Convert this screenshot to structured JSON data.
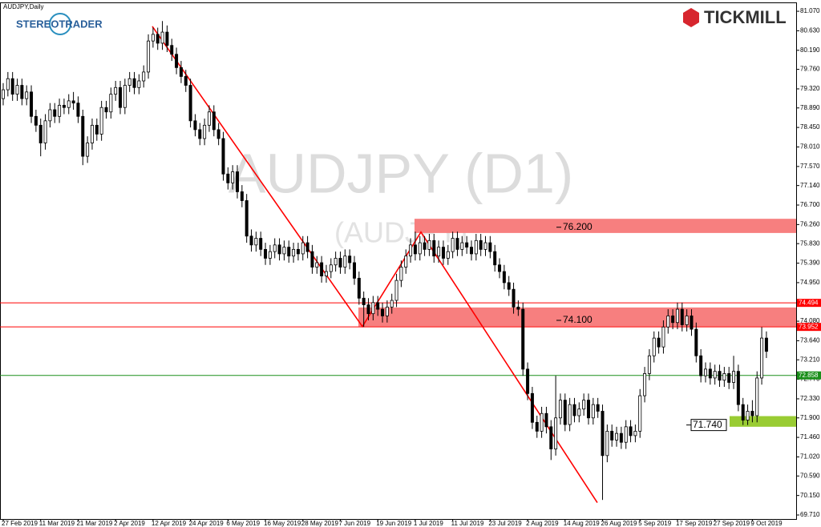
{
  "chart_data": {
    "type": "candlestick",
    "title": "AUDJPY,Daily",
    "watermark": "AUDJPY (D1)",
    "watermark_sub": "(AUDJPY)",
    "brand_left": "STEREOTRADER",
    "brand_right": "TICKMILL",
    "up_color": "#ffffff",
    "down_color": "#000000",
    "categories": [
      "27 Feb 2019",
      null,
      null,
      null,
      null,
      null,
      null,
      null,
      "11 Mar 2019",
      null,
      null,
      null,
      null,
      null,
      null,
      null,
      "21 Mar 2019",
      null,
      null,
      null,
      null,
      null,
      null,
      null,
      "2 Apr 2019",
      null,
      null,
      null,
      null,
      null,
      null,
      null,
      "12 Apr 2019",
      null,
      null,
      null,
      null,
      null,
      null,
      null,
      "24 Apr 2019",
      null,
      null,
      null,
      null,
      null,
      null,
      null,
      "6 May 2019",
      null,
      null,
      null,
      null,
      null,
      null,
      null,
      "16 May 2019",
      null,
      null,
      null,
      null,
      null,
      null,
      null,
      "28 May 2019",
      null,
      null,
      null,
      null,
      null,
      null,
      null,
      "7 Jun 2019",
      null,
      null,
      null,
      null,
      null,
      null,
      null,
      "19 Jun 2019",
      null,
      null,
      null,
      null,
      null,
      null,
      null,
      "1 Jul 2019",
      null,
      null,
      null,
      null,
      null,
      null,
      null,
      "11 Jul 2019",
      null,
      null,
      null,
      null,
      null,
      null,
      null,
      "23 Jul 2019",
      null,
      null,
      null,
      null,
      null,
      null,
      null,
      "2 Aug 2019",
      null,
      null,
      null,
      null,
      null,
      null,
      null,
      "14 Aug 2019",
      null,
      null,
      null,
      null,
      null,
      null,
      null,
      "26 Aug 2019",
      null,
      null,
      null,
      null,
      null,
      null,
      null,
      "5 Sep 2019",
      null,
      null,
      null,
      null,
      null,
      null,
      null,
      "17 Sep 2019",
      null,
      null,
      null,
      null,
      null,
      null,
      null,
      "27 Sep 2019",
      null,
      null,
      null,
      null,
      null,
      null,
      null,
      "9 Oct 2019",
      null,
      null,
      null
    ],
    "open": [
      79.1,
      79.3,
      79.55,
      79.2,
      79.4,
      79.1,
      79.25,
      78.7,
      78.5,
      78.1,
      78.6,
      78.85,
      78.7,
      78.95,
      78.9,
      79.05,
      79.0,
      78.7,
      77.8,
      78.1,
      78.5,
      78.3,
      78.9,
      78.8,
      79.2,
      79.35,
      78.9,
      79.4,
      79.55,
      79.35,
      79.5,
      79.7,
      80.4,
      80.55,
      80.35,
      80.6,
      80.3,
      80.1,
      79.8,
      79.6,
      79.4,
      78.6,
      78.4,
      78.2,
      78.5,
      78.8,
      78.4,
      78.2,
      77.4,
      77.2,
      77.45,
      77.0,
      76.8,
      76.0,
      75.8,
      75.95,
      75.7,
      75.5,
      75.65,
      75.8,
      75.6,
      75.75,
      75.55,
      75.7,
      75.6,
      75.85,
      75.65,
      75.3,
      75.4,
      75.1,
      75.2,
      75.35,
      75.5,
      75.3,
      75.55,
      75.4,
      75.05,
      74.6,
      74.45,
      74.25,
      74.5,
      74.35,
      74.2,
      74.4,
      74.55,
      75.0,
      75.3,
      75.55,
      75.8,
      75.6,
      75.85,
      75.7,
      75.9,
      75.55,
      75.75,
      75.5,
      75.65,
      75.95,
      75.7,
      75.85,
      75.75,
      75.6,
      75.9,
      75.7,
      75.85,
      75.65,
      75.35,
      75.2,
      74.95,
      74.8,
      74.4,
      74.35,
      73.0,
      72.45,
      71.8,
      71.6,
      72.0,
      71.7,
      71.2,
      71.9,
      72.3,
      71.75,
      72.2,
      71.95,
      72.1,
      72.3,
      71.9,
      72.2,
      72.05,
      71.05,
      71.6,
      71.4,
      71.55,
      71.35,
      71.7,
      71.5,
      71.6,
      72.4,
      72.9,
      73.3,
      73.7,
      73.5,
      73.95,
      74.2,
      74.05,
      74.35,
      74.0,
      74.2,
      73.9,
      73.3,
      72.85,
      73.0,
      72.8,
      72.95,
      72.75,
      72.9,
      72.7,
      72.95,
      72.2,
      71.85,
      72.05,
      71.95,
      72.8,
      73.7
    ],
    "high": [
      79.45,
      79.7,
      79.7,
      79.55,
      79.55,
      79.4,
      79.4,
      78.85,
      78.65,
      78.75,
      79.0,
      79.0,
      79.1,
      79.1,
      79.2,
      79.25,
      79.15,
      78.85,
      78.25,
      78.65,
      78.65,
      79.05,
      79.05,
      79.35,
      79.5,
      79.5,
      79.55,
      79.7,
      79.7,
      79.65,
      79.85,
      80.55,
      80.7,
      80.7,
      80.85,
      80.75,
      80.45,
      80.25,
      79.95,
      79.75,
      79.55,
      78.75,
      78.55,
      78.65,
      78.95,
      78.95,
      78.55,
      78.35,
      77.55,
      77.6,
      77.6,
      77.15,
      76.95,
      76.15,
      76.1,
      76.1,
      75.85,
      75.8,
      75.95,
      75.95,
      75.9,
      75.9,
      75.85,
      75.85,
      76.0,
      76.0,
      75.8,
      75.55,
      75.55,
      75.35,
      75.5,
      75.65,
      75.65,
      75.7,
      75.7,
      75.55,
      75.2,
      74.75,
      74.6,
      74.65,
      74.65,
      74.5,
      74.55,
      74.7,
      75.15,
      75.45,
      75.7,
      75.95,
      76.1,
      76.0,
      76.0,
      76.05,
      76.05,
      75.9,
      75.9,
      75.8,
      76.1,
      76.1,
      76.0,
      76.0,
      75.9,
      76.05,
      76.05,
      76.0,
      76.0,
      75.8,
      75.5,
      75.35,
      75.1,
      74.95,
      74.55,
      74.5,
      73.15,
      72.6,
      71.95,
      72.15,
      72.15,
      71.85,
      72.85,
      72.45,
      72.45,
      72.35,
      72.35,
      72.25,
      72.45,
      72.45,
      72.35,
      72.35,
      72.2,
      71.75,
      71.75,
      71.7,
      71.7,
      71.85,
      71.85,
      71.75,
      72.55,
      73.05,
      73.45,
      73.85,
      73.85,
      74.1,
      74.35,
      74.35,
      74.5,
      74.5,
      74.35,
      74.35,
      74.05,
      73.45,
      73.15,
      73.15,
      73.1,
      73.1,
      73.05,
      73.05,
      73.3,
      73.1,
      72.35,
      72.2,
      72.3,
      72.95,
      73.95,
      73.85
    ],
    "low": [
      78.95,
      79.15,
      79.05,
      79.05,
      78.95,
      78.95,
      78.55,
      78.35,
      77.8,
      77.95,
      78.45,
      78.55,
      78.55,
      78.75,
      78.75,
      78.85,
      78.55,
      77.6,
      77.65,
      77.95,
      78.15,
      78.15,
      78.65,
      78.65,
      79.05,
      78.75,
      78.75,
      79.25,
      79.2,
      79.2,
      79.35,
      79.55,
      80.25,
      80.2,
      80.2,
      80.15,
      79.95,
      79.65,
      79.45,
      79.25,
      78.45,
      78.25,
      78.05,
      78.05,
      78.35,
      78.25,
      78.05,
      77.25,
      77.05,
      77.05,
      76.85,
      76.65,
      75.85,
      75.65,
      75.65,
      75.55,
      75.35,
      75.35,
      75.5,
      75.45,
      75.45,
      75.4,
      75.4,
      75.45,
      75.45,
      75.5,
      75.15,
      75.15,
      74.95,
      74.95,
      75.05,
      75.2,
      75.15,
      75.15,
      75.25,
      74.9,
      74.45,
      73.95,
      74.1,
      74.1,
      74.2,
      74.05,
      74.05,
      74.25,
      74.4,
      74.85,
      75.15,
      75.4,
      75.45,
      75.45,
      75.55,
      75.55,
      75.4,
      75.4,
      75.35,
      75.35,
      75.5,
      75.55,
      75.55,
      75.6,
      75.45,
      75.45,
      75.55,
      75.55,
      75.5,
      75.2,
      75.05,
      74.8,
      74.65,
      74.25,
      74.2,
      72.85,
      72.3,
      71.65,
      71.45,
      71.45,
      71.55,
      70.95,
      71.05,
      71.75,
      71.6,
      71.6,
      71.8,
      71.8,
      71.95,
      71.75,
      71.75,
      71.9,
      70.05,
      70.9,
      71.25,
      71.25,
      71.2,
      71.2,
      71.35,
      71.35,
      71.45,
      72.25,
      72.75,
      73.15,
      73.35,
      73.35,
      73.8,
      73.9,
      73.9,
      73.85,
      73.85,
      73.75,
      73.15,
      72.7,
      72.7,
      72.65,
      72.65,
      72.6,
      72.6,
      72.55,
      72.55,
      72.05,
      71.74,
      71.74,
      71.8,
      71.8,
      72.65,
      73.25
    ],
    "close": [
      79.3,
      79.55,
      79.2,
      79.4,
      79.1,
      79.25,
      78.7,
      78.5,
      78.1,
      78.6,
      78.85,
      78.7,
      78.95,
      78.9,
      79.05,
      79.0,
      78.7,
      77.8,
      78.1,
      78.5,
      78.3,
      78.9,
      78.8,
      79.2,
      79.35,
      78.9,
      79.4,
      79.55,
      79.35,
      79.5,
      79.7,
      80.4,
      80.55,
      80.35,
      80.6,
      80.3,
      80.1,
      79.8,
      79.6,
      79.4,
      78.6,
      78.4,
      78.2,
      78.5,
      78.8,
      78.4,
      78.2,
      77.4,
      77.2,
      77.45,
      77.0,
      76.8,
      76.0,
      75.8,
      75.95,
      75.7,
      75.5,
      75.65,
      75.8,
      75.6,
      75.75,
      75.55,
      75.7,
      75.6,
      75.85,
      75.65,
      75.3,
      75.4,
      75.1,
      75.2,
      75.35,
      75.5,
      75.3,
      75.55,
      75.4,
      75.05,
      74.6,
      74.45,
      74.25,
      74.5,
      74.35,
      74.2,
      74.4,
      74.55,
      75.0,
      75.3,
      75.55,
      75.8,
      75.6,
      75.85,
      75.7,
      75.9,
      75.55,
      75.75,
      75.5,
      75.65,
      75.95,
      75.7,
      75.85,
      75.75,
      75.6,
      75.9,
      75.7,
      75.85,
      75.65,
      75.35,
      75.2,
      74.95,
      74.8,
      74.4,
      74.35,
      73.0,
      72.45,
      71.8,
      71.6,
      72.0,
      71.7,
      71.2,
      71.9,
      72.3,
      71.75,
      72.2,
      71.95,
      72.1,
      72.3,
      71.9,
      72.2,
      72.05,
      71.05,
      71.6,
      71.4,
      71.55,
      71.35,
      71.7,
      71.5,
      71.6,
      72.4,
      72.9,
      73.3,
      73.7,
      73.5,
      73.95,
      74.2,
      74.05,
      74.35,
      74.0,
      74.2,
      73.9,
      73.3,
      72.85,
      73.0,
      72.8,
      72.95,
      72.75,
      72.9,
      72.7,
      72.95,
      72.2,
      71.85,
      72.05,
      71.95,
      72.8,
      73.7,
      73.4
    ],
    "ylim": [
      69.62,
      81.27
    ],
    "yticks": [
      {
        "value": 81.07,
        "label": "81.070"
      },
      {
        "value": 80.63,
        "label": "80.630"
      },
      {
        "value": 80.19,
        "label": "80.190"
      },
      {
        "value": 79.76,
        "label": "79.760"
      },
      {
        "value": 79.32,
        "label": "79.320"
      },
      {
        "value": 78.89,
        "label": "78.890"
      },
      {
        "value": 78.45,
        "label": "78.450"
      },
      {
        "value": 78.01,
        "label": "78.010"
      },
      {
        "value": 77.57,
        "label": "77.570"
      },
      {
        "value": 77.14,
        "label": "77.140"
      },
      {
        "value": 76.7,
        "label": "76.700"
      },
      {
        "value": 76.26,
        "label": "76.260"
      },
      {
        "value": 75.83,
        "label": "75.830"
      },
      {
        "value": 75.39,
        "label": "75.390"
      },
      {
        "value": 74.95,
        "label": "74.950"
      },
      {
        "value": 74.08,
        "label": "74.080"
      },
      {
        "value": 73.64,
        "label": "73.640"
      },
      {
        "value": 73.21,
        "label": "73.210"
      },
      {
        "value": 72.77,
        "label": "72.770"
      },
      {
        "value": 72.33,
        "label": "72.330"
      },
      {
        "value": 71.9,
        "label": "71.900"
      },
      {
        "value": 71.46,
        "label": "71.460"
      },
      {
        "value": 71.02,
        "label": "71.020"
      },
      {
        "value": 70.59,
        "label": "70.590"
      },
      {
        "value": 70.15,
        "label": "70.150"
      },
      {
        "value": 69.71,
        "label": "69.710"
      }
    ],
    "levels": [
      {
        "value": 74.494,
        "color": "#ff0000"
      },
      {
        "value": 73.952,
        "color": "#ff0000"
      },
      {
        "value": 72.858,
        "color": "#1a8f1a"
      }
    ],
    "zones": [
      {
        "level": {
          "value": 76.2,
          "label": "76.200"
        },
        "low": 76.07,
        "high": 76.39,
        "color": "#f77f7f"
      },
      {
        "level": {
          "value": 74.1,
          "label": "74.100"
        },
        "low": 73.96,
        "high": 74.39,
        "color": "#f77f7f"
      },
      {
        "level": {
          "value": 71.74,
          "label": "71.740"
        },
        "low": 71.7,
        "high": 71.94,
        "color": "#99cc33"
      }
    ],
    "trend_line": {
      "color": "#ff0000",
      "values": [
        80.73,
        73.96,
        76.09,
        69.99
      ]
    }
  }
}
